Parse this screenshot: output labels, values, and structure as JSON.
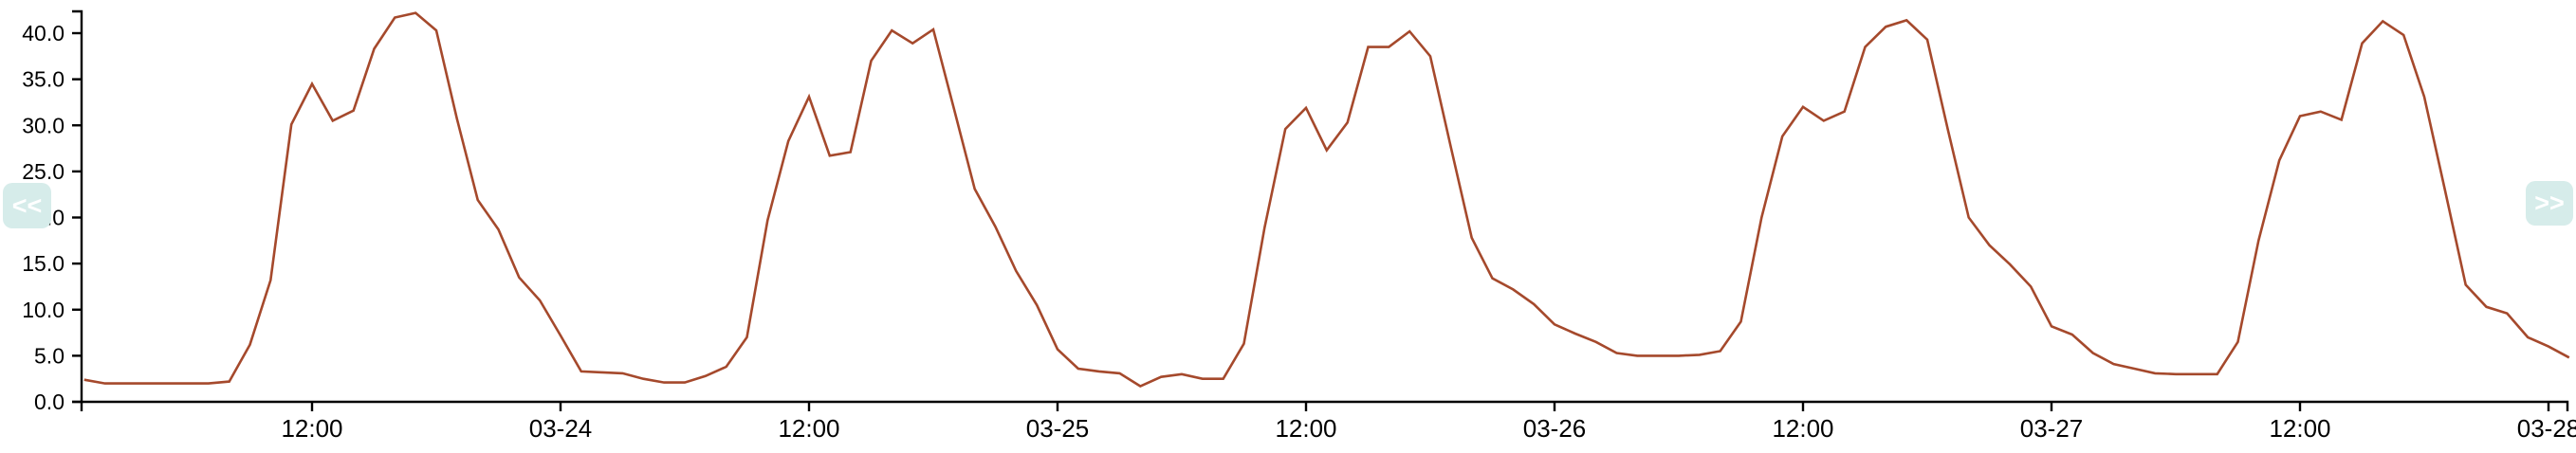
{
  "pager": {
    "prev_label": "<<",
    "next_label": ">>",
    "button_bg": "#d6ecea",
    "button_text_color": "#ffffff"
  },
  "chart_data": {
    "type": "line",
    "title": "",
    "xlabel": "",
    "ylabel": "",
    "grid": false,
    "legend_position": "none",
    "axis_color": "#000000",
    "x_axis": {
      "unit": "hours since 03-23 00:00",
      "range_hours": [
        1,
        121
      ],
      "ticks": [
        {
          "hour": 12,
          "label": "12:00"
        },
        {
          "hour": 24,
          "label": "03-24"
        },
        {
          "hour": 36,
          "label": "12:00"
        },
        {
          "hour": 48,
          "label": "03-25"
        },
        {
          "hour": 60,
          "label": "12:00"
        },
        {
          "hour": 72,
          "label": "03-26"
        },
        {
          "hour": 84,
          "label": "12:00"
        },
        {
          "hour": 96,
          "label": "03-27"
        },
        {
          "hour": 108,
          "label": "12:00"
        },
        {
          "hour": 120,
          "label": "03-28"
        }
      ]
    },
    "y_axis": {
      "range": [
        0,
        42.5
      ],
      "ticks": [
        {
          "value": 0,
          "label": "0.0"
        },
        {
          "value": 5,
          "label": "5.0"
        },
        {
          "value": 10,
          "label": "10.0"
        },
        {
          "value": 15,
          "label": "15.0"
        },
        {
          "value": 20,
          "label": "20.0"
        },
        {
          "value": 25,
          "label": "25.0"
        },
        {
          "value": 30,
          "label": "30.0"
        },
        {
          "value": 35,
          "label": "35.0"
        },
        {
          "value": 40,
          "label": "40.0"
        }
      ]
    },
    "series": [
      {
        "name": "value",
        "color": "#a5492c",
        "points": [
          [
            1,
            2.4
          ],
          [
            2,
            2.0
          ],
          [
            3,
            2.0
          ],
          [
            4,
            2.0
          ],
          [
            5,
            2.0
          ],
          [
            6,
            2.0
          ],
          [
            7,
            2.0
          ],
          [
            8,
            2.2
          ],
          [
            9,
            6.2
          ],
          [
            10,
            13.2
          ],
          [
            11,
            30.1
          ],
          [
            12,
            34.5
          ],
          [
            13,
            30.5
          ],
          [
            14,
            31.6
          ],
          [
            15,
            38.3
          ],
          [
            16,
            41.7
          ],
          [
            17,
            42.2
          ],
          [
            18,
            40.3
          ],
          [
            19,
            30.7
          ],
          [
            20,
            21.9
          ],
          [
            21,
            18.7
          ],
          [
            22,
            13.5
          ],
          [
            23,
            11.0
          ],
          [
            24,
            7.2
          ],
          [
            25,
            3.3
          ],
          [
            26,
            3.2
          ],
          [
            27,
            3.1
          ],
          [
            28,
            2.5
          ],
          [
            29,
            2.1
          ],
          [
            30,
            2.1
          ],
          [
            31,
            2.8
          ],
          [
            32,
            3.8
          ],
          [
            33,
            7.0
          ],
          [
            34,
            19.7
          ],
          [
            35,
            28.3
          ],
          [
            36,
            33.1
          ],
          [
            37,
            26.7
          ],
          [
            38,
            27.1
          ],
          [
            39,
            37.0
          ],
          [
            40,
            40.3
          ],
          [
            41,
            38.9
          ],
          [
            42,
            40.4
          ],
          [
            43,
            31.8
          ],
          [
            44,
            23.1
          ],
          [
            45,
            19.0
          ],
          [
            46,
            14.2
          ],
          [
            47,
            10.5
          ],
          [
            48,
            5.7
          ],
          [
            49,
            3.6
          ],
          [
            50,
            3.3
          ],
          [
            51,
            3.1
          ],
          [
            52,
            1.7
          ],
          [
            53,
            2.7
          ],
          [
            54,
            3.0
          ],
          [
            55,
            2.5
          ],
          [
            56,
            2.5
          ],
          [
            57,
            6.3
          ],
          [
            58,
            18.9
          ],
          [
            59,
            29.6
          ],
          [
            60,
            31.9
          ],
          [
            61,
            27.3
          ],
          [
            62,
            30.3
          ],
          [
            63,
            38.5
          ],
          [
            64,
            38.5
          ],
          [
            65,
            40.2
          ],
          [
            66,
            37.5
          ],
          [
            67,
            27.6
          ],
          [
            68,
            17.8
          ],
          [
            69,
            13.4
          ],
          [
            70,
            12.2
          ],
          [
            71,
            10.6
          ],
          [
            72,
            8.4
          ],
          [
            73,
            7.4
          ],
          [
            74,
            6.5
          ],
          [
            75,
            5.3
          ],
          [
            76,
            5.0
          ],
          [
            77,
            5.0
          ],
          [
            78,
            5.0
          ],
          [
            79,
            5.1
          ],
          [
            80,
            5.5
          ],
          [
            81,
            8.7
          ],
          [
            82,
            20.0
          ],
          [
            83,
            28.8
          ],
          [
            84,
            32.0
          ],
          [
            85,
            30.5
          ],
          [
            86,
            31.5
          ],
          [
            87,
            38.5
          ],
          [
            88,
            40.7
          ],
          [
            89,
            41.4
          ],
          [
            90,
            39.3
          ],
          [
            91,
            29.5
          ],
          [
            92,
            20.0
          ],
          [
            93,
            17.0
          ],
          [
            94,
            14.9
          ],
          [
            95,
            12.5
          ],
          [
            96,
            8.2
          ],
          [
            97,
            7.3
          ],
          [
            98,
            5.3
          ],
          [
            99,
            4.1
          ],
          [
            100,
            3.6
          ],
          [
            101,
            3.1
          ],
          [
            102,
            3.0
          ],
          [
            103,
            3.0
          ],
          [
            104,
            3.0
          ],
          [
            105,
            6.5
          ],
          [
            106,
            17.5
          ],
          [
            107,
            26.2
          ],
          [
            108,
            31.0
          ],
          [
            109,
            31.5
          ],
          [
            110,
            30.6
          ],
          [
            111,
            38.9
          ],
          [
            112,
            41.3
          ],
          [
            113,
            39.8
          ],
          [
            114,
            33.1
          ],
          [
            115,
            23.0
          ],
          [
            116,
            12.7
          ],
          [
            117,
            10.3
          ],
          [
            118,
            9.6
          ],
          [
            119,
            7.0
          ],
          [
            120,
            6.0
          ],
          [
            121,
            4.8
          ]
        ]
      }
    ]
  }
}
